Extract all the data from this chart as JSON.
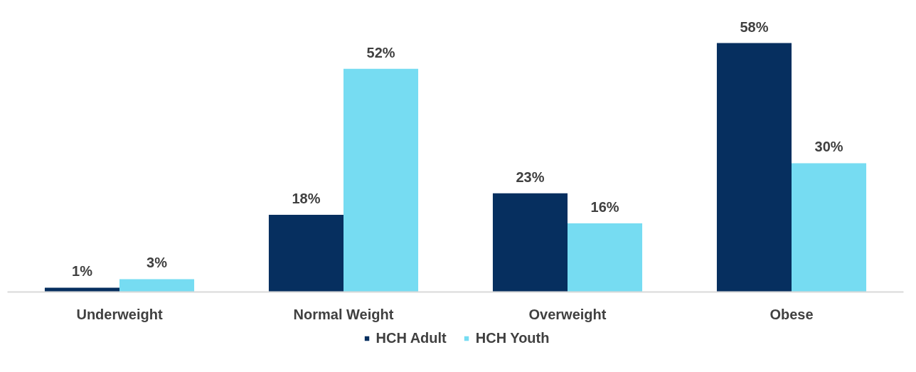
{
  "chart_data": {
    "type": "bar",
    "categories": [
      "Underweight",
      "Normal Weight",
      "Overweight",
      "Obese"
    ],
    "series": [
      {
        "name": "HCH Adult",
        "color": "#062f5f",
        "values": [
          1,
          18,
          23,
          58
        ],
        "value_labels": [
          "1%",
          "18%",
          "23%",
          "58%"
        ]
      },
      {
        "name": "HCH Youth",
        "color": "#76dcf2",
        "values": [
          3,
          52,
          16,
          30
        ],
        "value_labels": [
          "3%",
          "52%",
          "16%",
          "30%"
        ]
      }
    ],
    "grid": false,
    "legend": "bottom",
    "tick_labels": "x"
  }
}
